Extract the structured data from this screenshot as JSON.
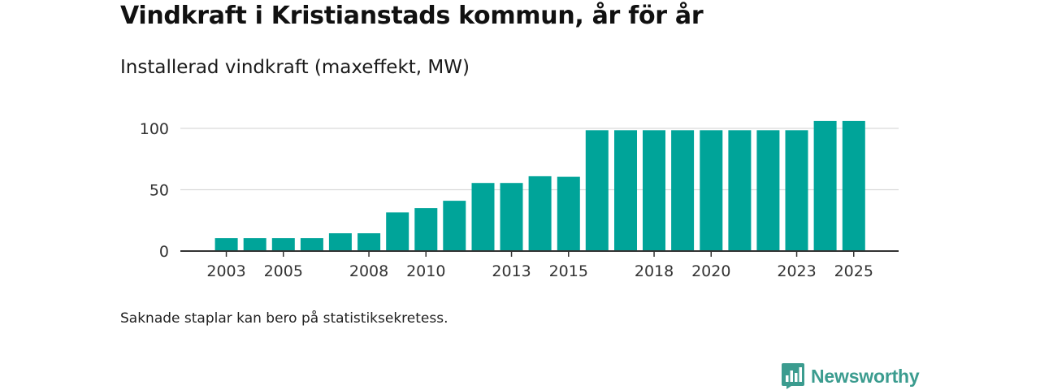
{
  "title": "Vindkraft i Kristianstads kommun, år för år",
  "subtitle": "Installerad vindkraft (maxeffekt, MW)",
  "footnote": "Saknade staplar kan bero på statistiksekretess.",
  "brand": {
    "name": "Newsworthy",
    "color": "#3b9c8f"
  },
  "colors": {
    "bar": "#00a499",
    "grid": "#d9d9d9",
    "axis": "#333333"
  },
  "chart_data": {
    "type": "bar",
    "title": "Installerad vindkraft (maxeffekt, MW)",
    "xlabel": "",
    "ylabel": "MW",
    "ylim": [
      0,
      100
    ],
    "grid": true,
    "categories": [
      "2003",
      "2004",
      "2005",
      "2006",
      "2007",
      "2008",
      "2009",
      "2010",
      "2011",
      "2012",
      "2013",
      "2014",
      "2015",
      "2016",
      "2017",
      "2018",
      "2019",
      "2020",
      "2021",
      "2022",
      "2023",
      "2024",
      "2025"
    ],
    "values": [
      10.5,
      10.5,
      10.5,
      10.5,
      14.5,
      14.5,
      31.5,
      35,
      41,
      55.5,
      55.5,
      61,
      60.5,
      98.5,
      98.5,
      98.5,
      98.5,
      98.5,
      98.5,
      98.5,
      98.5,
      106,
      106
    ],
    "x_tick_labels": [
      "2003",
      "2005",
      "2008",
      "2010",
      "2013",
      "2015",
      "2018",
      "2020",
      "2023",
      "2025"
    ],
    "y_ticks": [
      0,
      50,
      100
    ],
    "y_tick_labels": [
      "0",
      "50",
      "100"
    ]
  }
}
